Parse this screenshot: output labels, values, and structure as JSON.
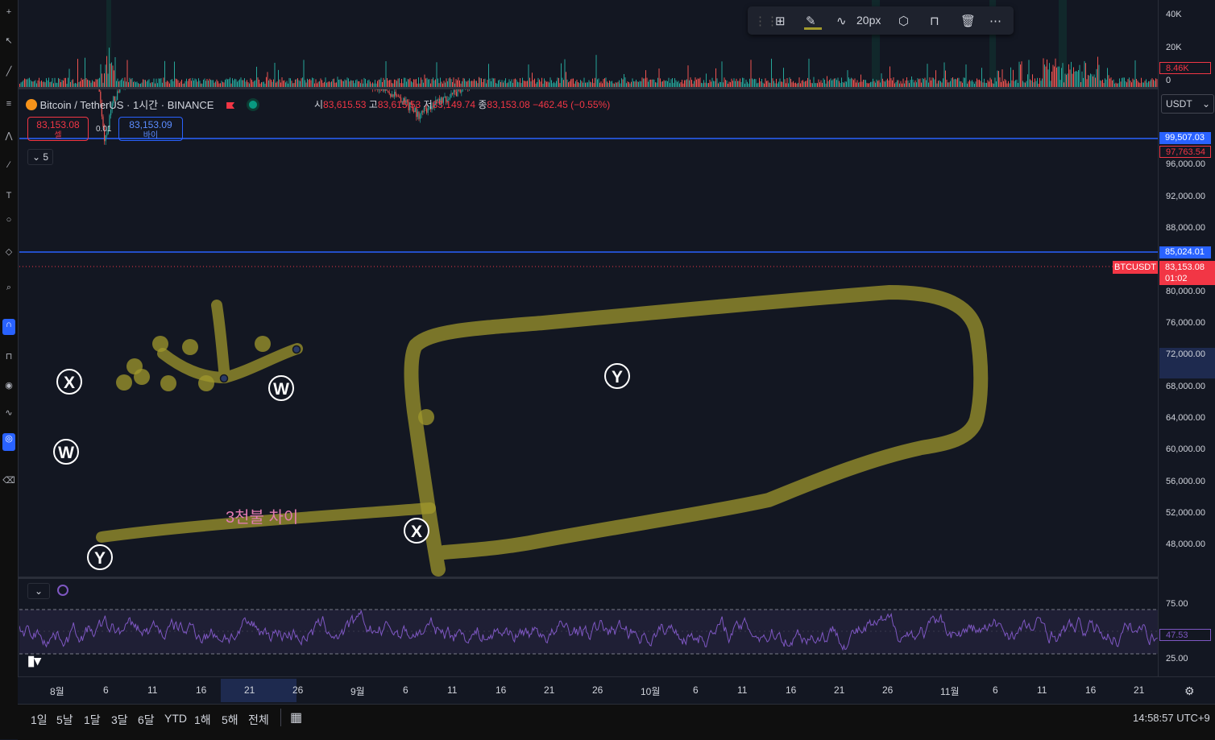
{
  "legend": {
    "symbol": "Bitcoin / TetherUS · 1시간 · BINANCE",
    "open_label": "시",
    "open": "83,615.53",
    "high_label": "고",
    "high": "83,615.53",
    "low_label": "저",
    "low": "83,149.74",
    "close_label": "종",
    "close": "83,153.08",
    "change": "−462.45 (−0.55%)"
  },
  "trade": {
    "sell_price": "83,153.08",
    "sell_label": "셀",
    "spread": "0.01",
    "buy_price": "83,153.09",
    "buy_label": "바이"
  },
  "collapse_count": "5",
  "currency": "USDT",
  "volume_axis": [
    "40K",
    "20K",
    "0"
  ],
  "volume_tag": "8.46K",
  "price_axis": [
    "96,000.00",
    "92,000.00",
    "88,000.00",
    "80,000.00",
    "76,000.00",
    "72,000.00",
    "68,000.00",
    "64,000.00",
    "60,000.00",
    "56,000.00",
    "52,000.00",
    "48,000.00"
  ],
  "price_tags": {
    "line_top": "99,507.03",
    "high_tag": "97,763.54",
    "line_mid": "85,024.01",
    "ticker": "BTCUSDT",
    "last_price": "83,153.08",
    "countdown": "01:02"
  },
  "rsi_axis": [
    "75.00",
    "25.00"
  ],
  "rsi_value": "47.53",
  "time_axis": [
    "8월",
    "6",
    "11",
    "16",
    "21",
    "26",
    "9월",
    "6",
    "11",
    "16",
    "21",
    "26",
    "10월",
    "6",
    "11",
    "16",
    "21",
    "26",
    "11월",
    "6",
    "11",
    "16",
    "21"
  ],
  "ranges": [
    "1일",
    "5날",
    "1달",
    "3달",
    "6달",
    "YTD",
    "1해",
    "5해",
    "전체"
  ],
  "clock": "14:58:57 UTC+9",
  "drawing_toolbar": {
    "width_label": "20px"
  },
  "wave_labels": [
    "X",
    "W",
    "Y",
    "W",
    "X",
    "Y"
  ],
  "annotation": "3천불 차이",
  "colors": {
    "background": "#131722",
    "up": "#26a69a",
    "down": "#ef5350",
    "hline": "#2962ff",
    "marker": "#a29a2c",
    "rsi": "#7e57c2"
  }
}
